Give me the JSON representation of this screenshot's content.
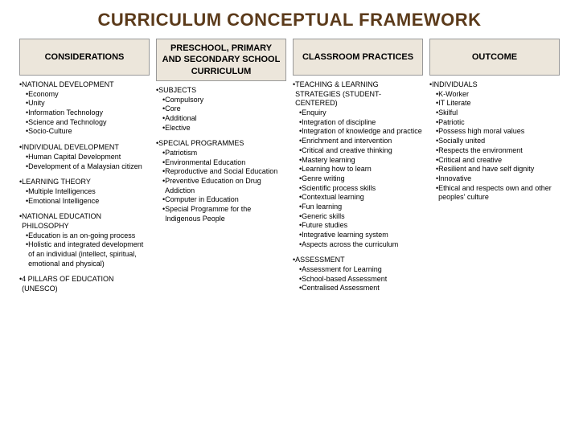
{
  "title": "CURRICULUM CONCEPTUAL FRAMEWORK",
  "colors": {
    "title_color": "#5b3a1a",
    "header_bg": "#ece6db",
    "header_border": "#999999",
    "text": "#000000",
    "background": "#ffffff"
  },
  "columns": [
    {
      "header": "CONSIDERATIONS",
      "sections": [
        {
          "title": "NATIONAL DEVELOPMENT",
          "items": [
            "Economy",
            "Unity",
            "Information Technology",
            "Science and Technology",
            "Socio-Culture"
          ]
        },
        {
          "title": "INDIVIDUAL DEVELOPMENT",
          "items": [
            "Human Capital Development",
            "Development of a Malaysian citizen"
          ]
        },
        {
          "title": "LEARNING THEORY",
          "items": [
            "Multiple Intelligences",
            "Emotional Intelligence"
          ]
        },
        {
          "title": "NATIONAL EDUCATION PHILOSOPHY",
          "items": [
            "Education is an on-going process",
            "Holistic and integrated development of an individual (intellect, spiritual, emotional and physical)"
          ]
        },
        {
          "title": "4 PILLARS OF EDUCATION (UNESCO)",
          "items": []
        }
      ]
    },
    {
      "header": "PRESCHOOL, PRIMARY AND SECONDARY SCHOOL CURRICULUM",
      "sections": [
        {
          "title": "SUBJECTS",
          "items": [
            "Compulsory",
            "Core",
            "Additional",
            "Elective"
          ]
        },
        {
          "title": "SPECIAL PROGRAMMES",
          "items": [
            "Patriotism",
            "Environmental Education",
            "Reproductive and Social Education",
            "Preventive Education on Drug Addiction",
            "Computer in Education",
            "Special Programme for the Indigenous People"
          ]
        }
      ]
    },
    {
      "header": "CLASSROOM PRACTICES",
      "sections": [
        {
          "title": "TEACHING & LEARNING STRATEGIES (STUDENT-CENTERED)",
          "items": [
            "Enquiry",
            "Integration of discipline",
            "Integration of knowledge and practice",
            "Enrichment and intervention",
            "Critical and creative thinking",
            "Mastery learning",
            "Learning how to learn",
            "Genre writing",
            "Scientific process skills",
            "Contextual learning",
            "Fun learning",
            "Generic skills",
            "Future studies",
            "Integrative learning system",
            "Aspects across the curriculum"
          ]
        },
        {
          "title": "ASSESSMENT",
          "items": [
            "Assessment for Learning",
            "School-based Assessment",
            "Centralised Assessment"
          ]
        }
      ]
    },
    {
      "header": "OUTCOME",
      "sections": [
        {
          "title": "INDIVIDUALS",
          "items": [
            "K-Worker",
            "IT Literate",
            "Skilful",
            "Patriotic",
            "Possess high moral values",
            "Socially united",
            "Respects the environment",
            "Critical and creative",
            "Resilient and have self dignity",
            "Innovative",
            "Ethical and respects own and other peoples' culture"
          ]
        }
      ]
    }
  ]
}
